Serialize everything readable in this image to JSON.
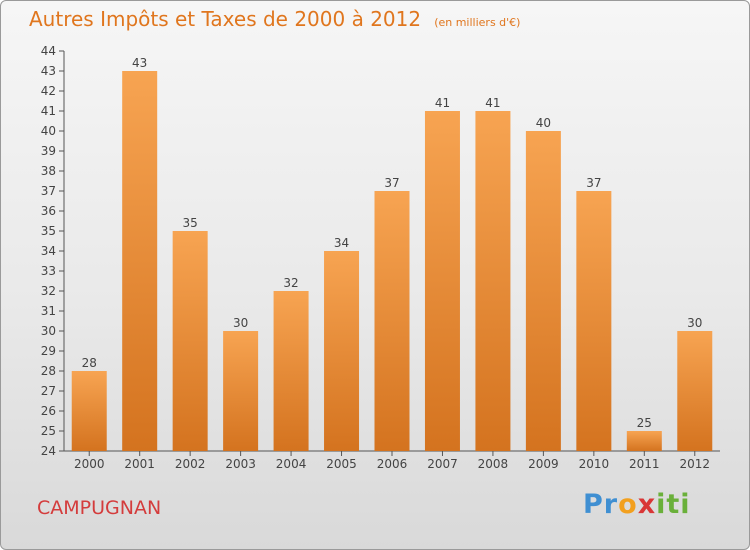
{
  "chart_data": {
    "type": "bar",
    "title": "Autres Impôts et Taxes de 2000 à 2012",
    "subtitle": "(en milliers d'€)",
    "categories": [
      "2000",
      "2001",
      "2002",
      "2003",
      "2004",
      "2005",
      "2006",
      "2007",
      "2008",
      "2009",
      "2010",
      "2011",
      "2012"
    ],
    "values": [
      28,
      43,
      35,
      30,
      32,
      34,
      37,
      41,
      41,
      40,
      37,
      25,
      30
    ],
    "ylim": [
      24,
      44
    ],
    "yticks": [
      24,
      25,
      26,
      27,
      28,
      29,
      30,
      31,
      32,
      33,
      34,
      35,
      36,
      37,
      38,
      39,
      40,
      41,
      42,
      43,
      44
    ],
    "grid": false,
    "legend": "none",
    "colors": {
      "bar_top": "#f7a452",
      "bar_bottom": "#d4731f",
      "title": "#e0761e",
      "commune": "#d43c3c"
    }
  },
  "commune": "CAMPUGNAN",
  "logo": {
    "letters": [
      {
        "char": "P",
        "color": "#3f8fd2"
      },
      {
        "char": "r",
        "color": "#3f8fd2"
      },
      {
        "char": "o",
        "color": "#f2a01e"
      },
      {
        "char": "x",
        "color": "#d93636"
      },
      {
        "char": "i",
        "color": "#6ab03a"
      },
      {
        "char": "t",
        "color": "#6ab03a"
      },
      {
        "char": "i",
        "color": "#6ab03a"
      }
    ]
  }
}
